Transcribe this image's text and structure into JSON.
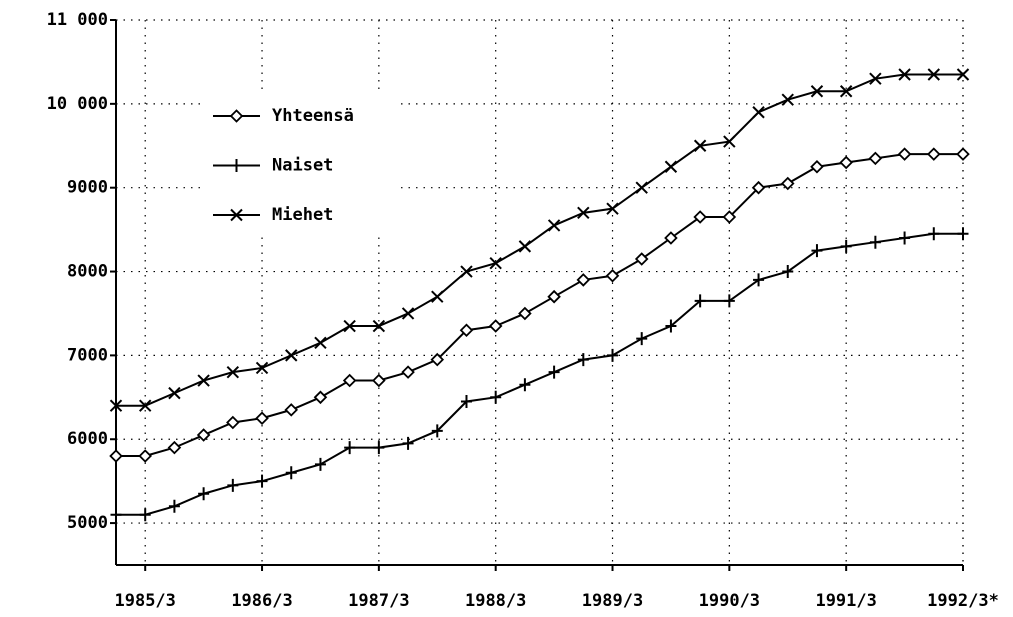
{
  "chart_data": {
    "type": "line",
    "categories": [
      null,
      "1985/3",
      null,
      null,
      null,
      "1986/3",
      null,
      null,
      null,
      "1987/3",
      null,
      null,
      null,
      "1988/3",
      null,
      null,
      null,
      "1989/3",
      null,
      null,
      null,
      "1990/3",
      null,
      null,
      null,
      "1991/3",
      null,
      null,
      null,
      "1992/3*"
    ],
    "series": [
      {
        "name": "Yhteensä",
        "color": "#000000",
        "marker": "diamond",
        "values": [
          5800,
          5800,
          5900,
          6050,
          6200,
          6250,
          6350,
          6500,
          6700,
          6700,
          6800,
          6950,
          7300,
          7350,
          7500,
          7700,
          7900,
          7950,
          8150,
          8400,
          8650,
          8650,
          9000,
          9050,
          9250,
          9300,
          9350,
          9400,
          9400,
          9400
        ]
      },
      {
        "name": "Naiset",
        "color": "#000000",
        "marker": "plus",
        "values": [
          5100,
          5100,
          5200,
          5350,
          5450,
          5500,
          5600,
          5700,
          5900,
          5900,
          5950,
          6100,
          6450,
          6500,
          6650,
          6800,
          6950,
          7000,
          7200,
          7350,
          7650,
          7650,
          7900,
          8000,
          8250,
          8300,
          8350,
          8400,
          8450,
          8450
        ]
      },
      {
        "name": "Miehet",
        "color": "#000000",
        "marker": "cross",
        "values": [
          6400,
          6400,
          6550,
          6700,
          6800,
          6850,
          7000,
          7150,
          7350,
          7350,
          7500,
          7700,
          8000,
          8100,
          8300,
          8550,
          8700,
          8750,
          9000,
          9250,
          9500,
          9550,
          9900,
          10050,
          10150,
          10150,
          10300,
          10350,
          10350,
          10350
        ]
      }
    ],
    "ylim": [
      4500,
      11000
    ],
    "yticks": [
      5000,
      6000,
      7000,
      8000,
      9000,
      {
        "value": 10000,
        "label": "10 000"
      },
      {
        "value": 11000,
        "label": "11 000"
      }
    ],
    "grid": true,
    "legend": "upper-left"
  }
}
